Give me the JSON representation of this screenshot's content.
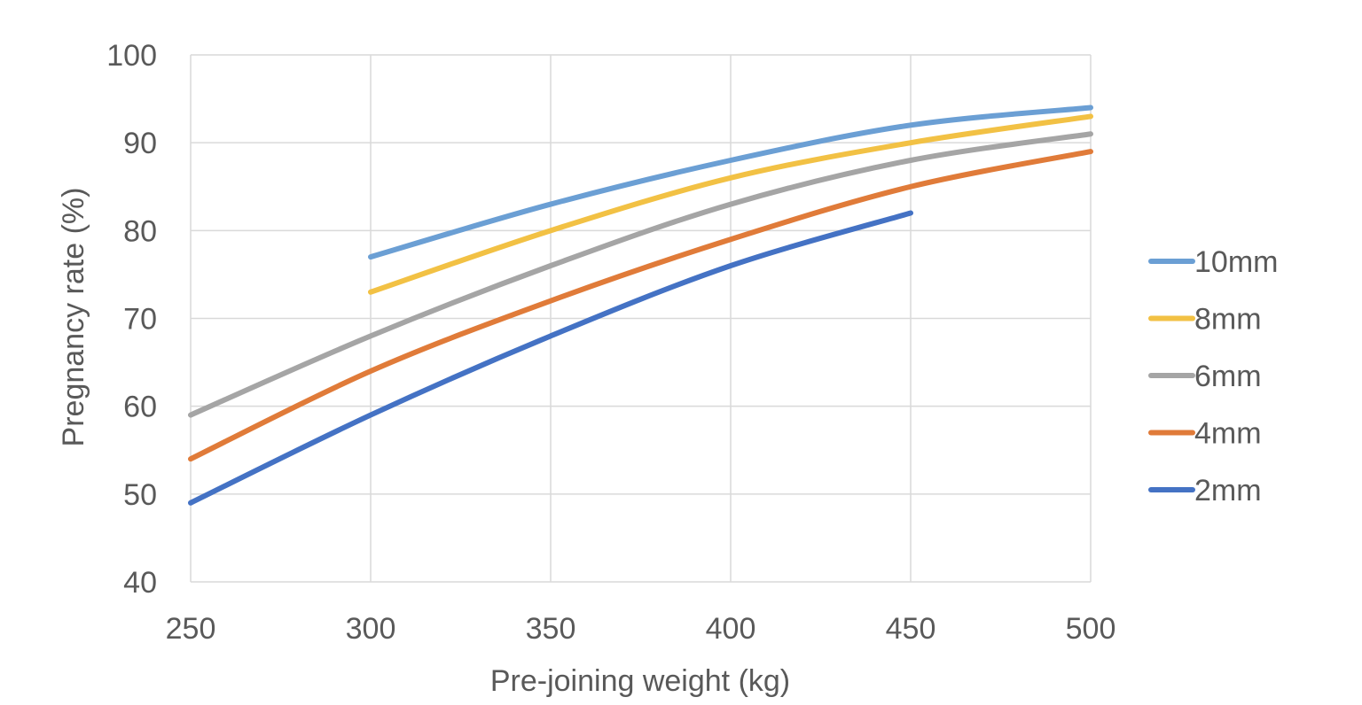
{
  "chart_data": {
    "type": "line",
    "title": "",
    "xlabel": "Pre-joining weight (kg)",
    "ylabel": "Pregnancy rate (%)",
    "xlim": [
      250,
      500
    ],
    "ylim": [
      40,
      100
    ],
    "x_ticks": [
      250,
      300,
      350,
      400,
      450,
      500
    ],
    "y_ticks": [
      40,
      50,
      60,
      70,
      80,
      90,
      100
    ],
    "grid": true,
    "legend_position": "right",
    "series": [
      {
        "name": "10mm",
        "color": "#6b9fd4",
        "x": [
          300,
          350,
          400,
          450,
          500
        ],
        "y": [
          77,
          83,
          88,
          92,
          94
        ]
      },
      {
        "name": "8mm",
        "color": "#f2c144",
        "x": [
          300,
          350,
          400,
          450,
          500
        ],
        "y": [
          73,
          80,
          86,
          90,
          93
        ]
      },
      {
        "name": "6mm",
        "color": "#a5a5a5",
        "x": [
          250,
          300,
          350,
          400,
          450,
          500
        ],
        "y": [
          59,
          68,
          76,
          83,
          88,
          91
        ]
      },
      {
        "name": "4mm",
        "color": "#e07b39",
        "x": [
          250,
          300,
          350,
          400,
          450,
          500
        ],
        "y": [
          54,
          64,
          72,
          79,
          85,
          89
        ]
      },
      {
        "name": "2mm",
        "color": "#4472c4",
        "x": [
          250,
          300,
          350,
          400,
          450
        ],
        "y": [
          49,
          59,
          68,
          76,
          82
        ]
      }
    ]
  }
}
